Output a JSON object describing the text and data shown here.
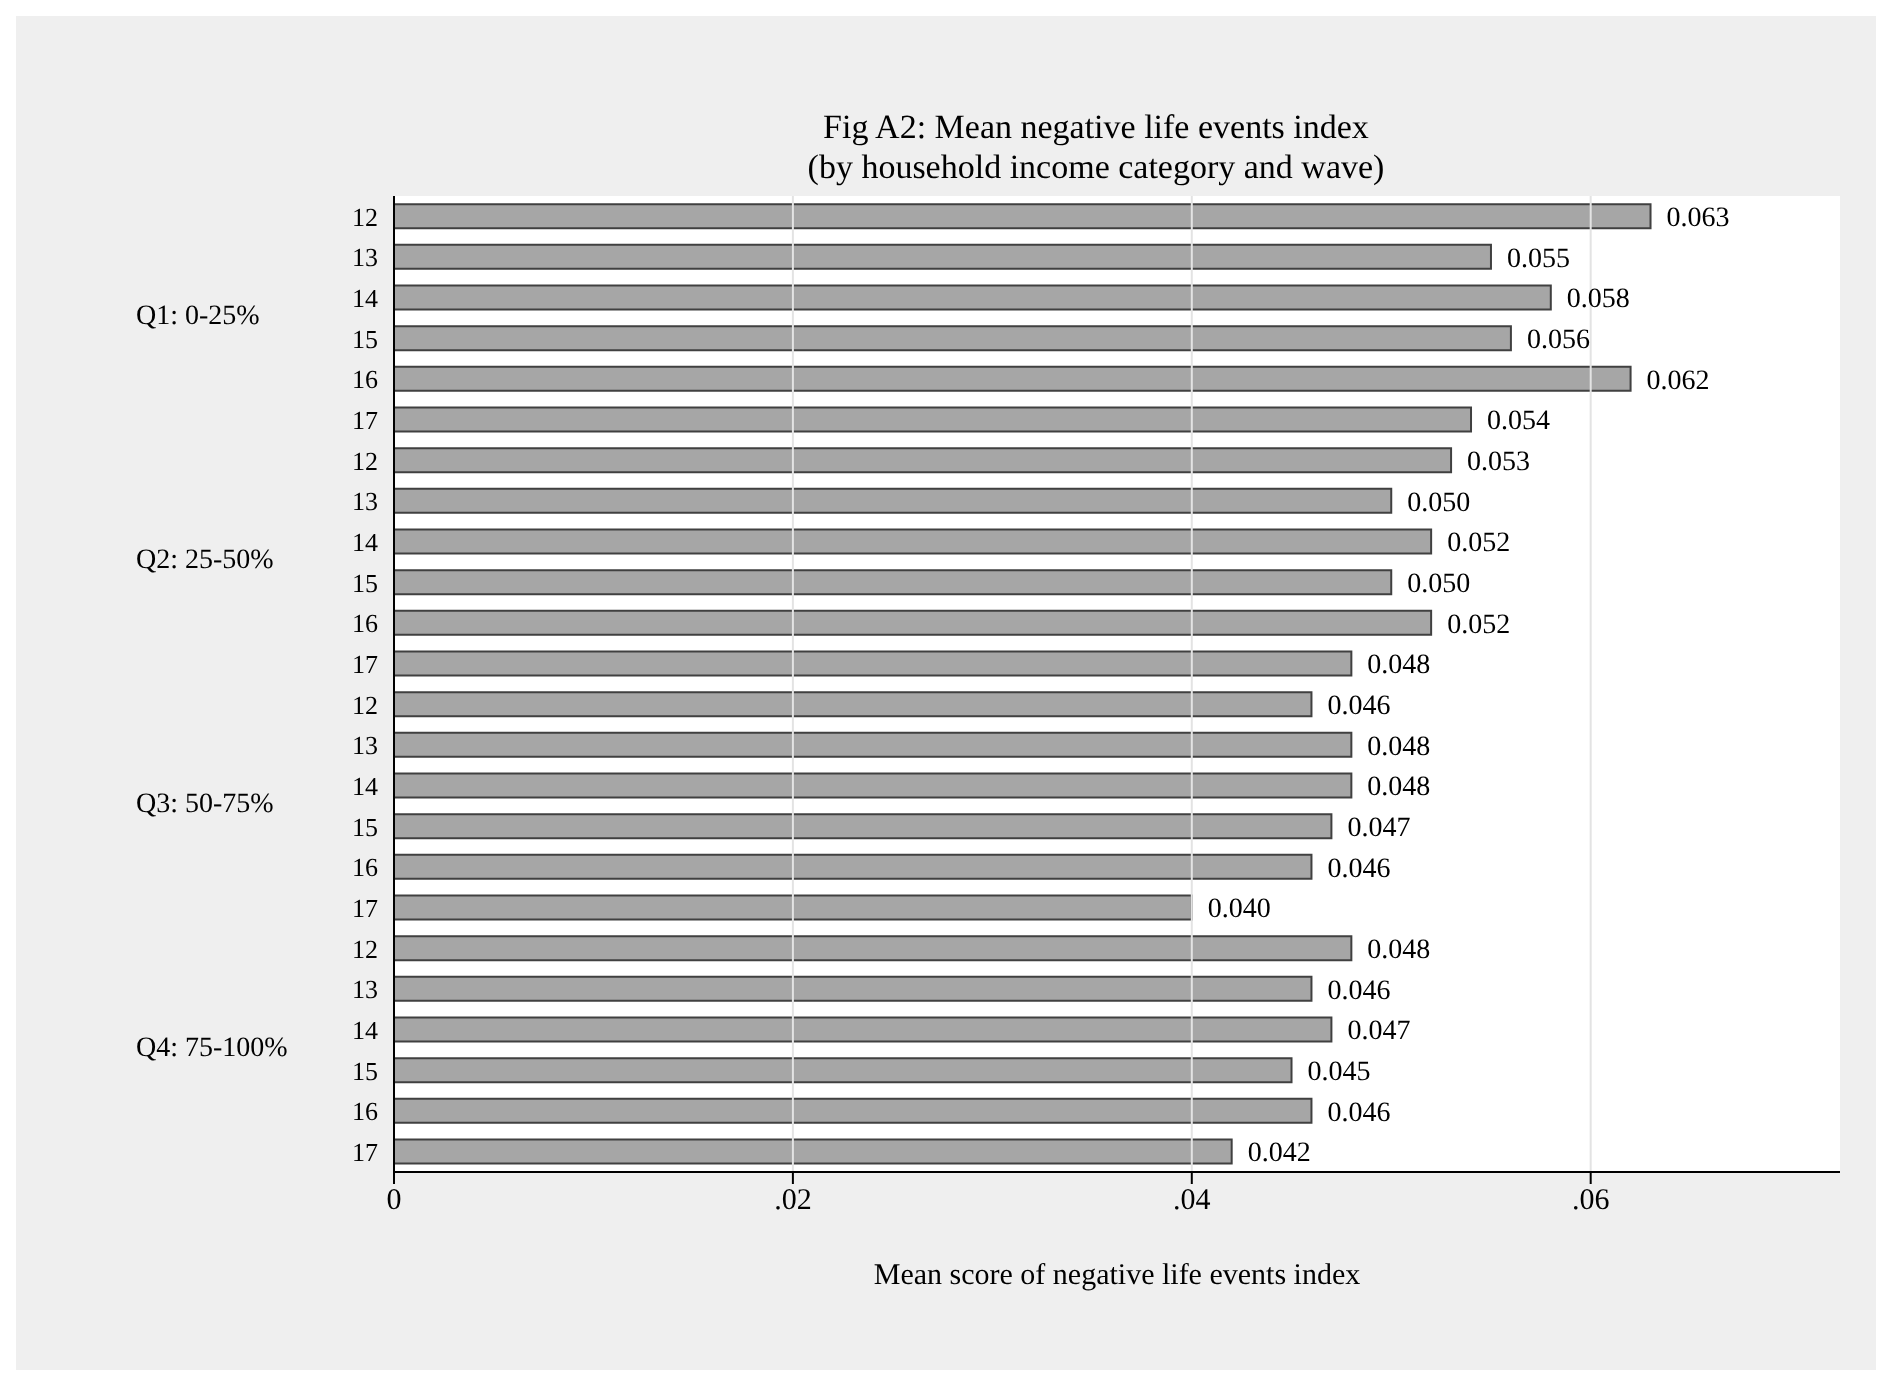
{
  "chart_data": [
    {
      "type": "bar",
      "orientation": "horizontal",
      "title": "Fig A2: Mean negative life events index\n(by household income category and wave)",
      "ylabel": "Q1: 0-25%",
      "categories": [
        "12",
        "13",
        "14",
        "15",
        "16",
        "17"
      ],
      "values": [
        0.063,
        0.055,
        0.058,
        0.056,
        0.062,
        0.054
      ],
      "value_labels": [
        "0.063",
        "0.055",
        "0.058",
        "0.056",
        "0.062",
        "0.054"
      ],
      "color": "#a6a6a6",
      "xlim": [
        0,
        0.0725
      ],
      "xticks": [
        {
          "value": 0,
          "label": null
        },
        {
          "value": 0.02,
          "label": null
        },
        {
          "value": 0.04,
          "label": null
        },
        {
          "value": 0.06,
          "label": null
        }
      ],
      "grid": "x",
      "tick_labels": "y"
    },
    {
      "type": "bar",
      "orientation": "horizontal",
      "ylabel": "Q2: 25-50%",
      "categories": [
        "12",
        "13",
        "14",
        "15",
        "16",
        "17"
      ],
      "values": [
        0.053,
        0.05,
        0.052,
        0.05,
        0.052,
        0.048
      ],
      "value_labels": [
        "0.053",
        "0.050",
        "0.052",
        "0.050",
        "0.052",
        "0.048"
      ],
      "color": "#a6a6a6",
      "xlim": [
        0,
        0.0725
      ],
      "xticks": [
        {
          "value": 0,
          "label": null
        },
        {
          "value": 0.02,
          "label": null
        },
        {
          "value": 0.04,
          "label": null
        },
        {
          "value": 0.06,
          "label": null
        }
      ],
      "grid": "x",
      "tick_labels": "y"
    },
    {
      "type": "bar",
      "orientation": "horizontal",
      "ylabel": "Q3: 50-75%",
      "categories": [
        "12",
        "13",
        "14",
        "15",
        "16",
        "17"
      ],
      "values": [
        0.046,
        0.048,
        0.048,
        0.047,
        0.046,
        0.04
      ],
      "value_labels": [
        "0.046",
        "0.048",
        "0.048",
        "0.047",
        "0.046",
        "0.040"
      ],
      "color": "#a6a6a6",
      "xlim": [
        0,
        0.0725
      ],
      "xticks": [
        {
          "value": 0,
          "label": null
        },
        {
          "value": 0.02,
          "label": null
        },
        {
          "value": 0.04,
          "label": null
        },
        {
          "value": 0.06,
          "label": null
        }
      ],
      "grid": "x",
      "tick_labels": "y"
    },
    {
      "type": "bar",
      "orientation": "horizontal",
      "ylabel": "Q4: 75-100%",
      "xlabel": "Mean score of negative life events index",
      "categories": [
        "12",
        "13",
        "14",
        "15",
        "16",
        "17"
      ],
      "values": [
        0.048,
        0.046,
        0.047,
        0.045,
        0.046,
        0.042
      ],
      "value_labels": [
        "0.048",
        "0.046",
        "0.047",
        "0.045",
        "0.046",
        "0.042"
      ],
      "color": "#a6a6a6",
      "xlim": [
        0,
        0.0725
      ],
      "xticks": [
        {
          "value": 0,
          "label": "0"
        },
        {
          "value": 0.02,
          "label": ".02"
        },
        {
          "value": 0.04,
          "label": ".04"
        },
        {
          "value": 0.06,
          "label": ".06"
        }
      ],
      "grid": "x"
    }
  ]
}
